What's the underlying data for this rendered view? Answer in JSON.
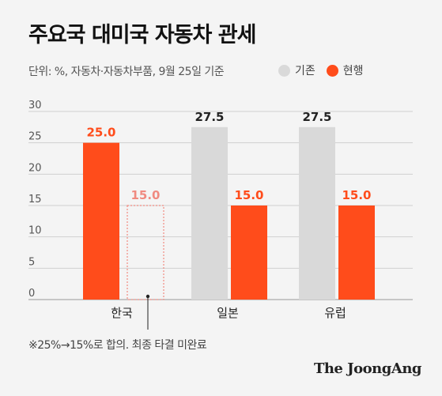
{
  "title": "주요국 대미국 자동차 관세",
  "subtitle": "단위: %, 자동차·자동차부품, 9월 25일 기준",
  "legend": [
    {
      "label": "기존",
      "color": "#d9d9d9"
    },
    {
      "label": "현행",
      "color": "#ff4c1b"
    }
  ],
  "chart_data": {
    "type": "bar",
    "categories": [
      "한국",
      "일본",
      "유럽"
    ],
    "series": [
      {
        "name": "기존",
        "values": [
          null,
          27.5,
          27.5
        ],
        "color": "#d9d9d9"
      },
      {
        "name": "현행",
        "values": [
          25.0,
          15.0,
          15.0
        ],
        "color": "#ff4c1b"
      }
    ],
    "agreed": {
      "category": "한국",
      "value": 15.0,
      "label": "15.0",
      "color": "#f08a80"
    },
    "yticks": [
      0,
      5,
      10,
      15,
      20,
      25,
      30
    ],
    "ylim": [
      0,
      30
    ],
    "grid": true
  },
  "footnote": "※25%→15%로 합의. 최종 타결 미완료",
  "brand": "The JoongAng"
}
